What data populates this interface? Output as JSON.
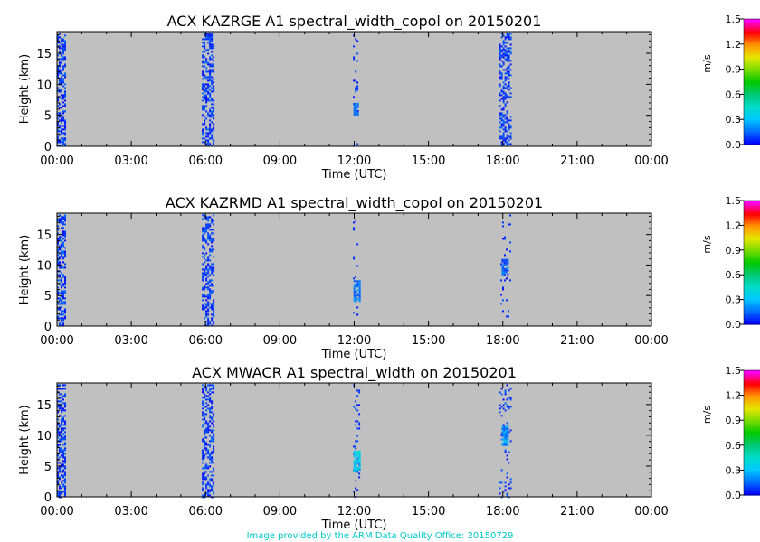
{
  "chart_data": [
    {
      "type": "heatmap",
      "title": "ACX KAZRGE A1 spectral_width_copol on 20150201",
      "xlabel": "Time (UTC)",
      "ylabel": "Height (km)",
      "xlim": [
        0,
        24
      ],
      "ylim": [
        0,
        18.5
      ],
      "x_tick_labels": [
        "00:00",
        "03:00",
        "06:00",
        "09:00",
        "12:00",
        "15:00",
        "18:00",
        "21:00",
        "00:00"
      ],
      "y_ticks": [
        0,
        5,
        10,
        15
      ],
      "colorbar": {
        "label": "m/s",
        "range": [
          0,
          1.5
        ],
        "ticks": [
          "0.0",
          "0.3",
          "0.6",
          "0.9",
          "1.2",
          "1.5"
        ]
      },
      "echo_bands": [
        {
          "t_start": 0.0,
          "t_end": 0.35,
          "h_bottom": 0.0,
          "h_top": 18.3,
          "density": 0.55,
          "sw_min": 0.0,
          "sw_max": 0.15
        },
        {
          "t_start": 5.85,
          "t_end": 6.3,
          "h_bottom": 0.0,
          "h_top": 18.3,
          "density": 0.5,
          "sw_min": 0.0,
          "sw_max": 0.15
        },
        {
          "t_start": 11.95,
          "t_end": 12.15,
          "h_bottom": 0.0,
          "h_top": 18.3,
          "density": 0.08,
          "sw_min": 0.0,
          "sw_max": 0.12
        },
        {
          "t_start": 11.97,
          "t_end": 12.17,
          "h_bottom": 5.0,
          "h_top": 7.0,
          "density": 0.85,
          "sw_min": 0.05,
          "sw_max": 0.2
        },
        {
          "t_start": 17.85,
          "t_end": 18.35,
          "h_bottom": 0.0,
          "h_top": 18.3,
          "density": 0.45,
          "sw_min": 0.0,
          "sw_max": 0.15
        }
      ]
    },
    {
      "type": "heatmap",
      "title": "ACX KAZRMD A1 spectral_width_copol on 20150201",
      "xlabel": "Time (UTC)",
      "ylabel": "Height (km)",
      "xlim": [
        0,
        24
      ],
      "ylim": [
        0,
        18.5
      ],
      "x_tick_labels": [
        "00:00",
        "03:00",
        "06:00",
        "09:00",
        "12:00",
        "15:00",
        "18:00",
        "21:00",
        "00:00"
      ],
      "y_ticks": [
        0,
        5,
        10,
        15
      ],
      "colorbar": {
        "label": "m/s",
        "range": [
          0,
          1.5
        ],
        "ticks": [
          "0.0",
          "0.3",
          "0.6",
          "0.9",
          "1.2",
          "1.5"
        ]
      },
      "echo_bands": [
        {
          "t_start": 0.0,
          "t_end": 0.35,
          "h_bottom": 0.0,
          "h_top": 18.3,
          "density": 0.55,
          "sw_min": 0.0,
          "sw_max": 0.15
        },
        {
          "t_start": 5.85,
          "t_end": 6.3,
          "h_bottom": 0.0,
          "h_top": 18.3,
          "density": 0.5,
          "sw_min": 0.0,
          "sw_max": 0.15
        },
        {
          "t_start": 11.95,
          "t_end": 12.15,
          "h_bottom": 0.0,
          "h_top": 18.3,
          "density": 0.08,
          "sw_min": 0.0,
          "sw_max": 0.12
        },
        {
          "t_start": 11.97,
          "t_end": 12.2,
          "h_bottom": 4.0,
          "h_top": 7.5,
          "density": 0.85,
          "sw_min": 0.08,
          "sw_max": 0.22
        },
        {
          "t_start": 17.9,
          "t_end": 18.3,
          "h_bottom": 0.0,
          "h_top": 18.3,
          "density": 0.08,
          "sw_min": 0.0,
          "sw_max": 0.12
        },
        {
          "t_start": 17.95,
          "t_end": 18.2,
          "h_bottom": 8.5,
          "h_top": 11.0,
          "density": 0.85,
          "sw_min": 0.05,
          "sw_max": 0.2
        }
      ]
    },
    {
      "type": "heatmap",
      "title": "ACX MWACR A1 spectral_width on 20150201",
      "xlabel": "Time (UTC)",
      "ylabel": "Height (km)",
      "xlim": [
        0,
        24
      ],
      "ylim": [
        0,
        18.5
      ],
      "x_tick_labels": [
        "00:00",
        "03:00",
        "06:00",
        "09:00",
        "12:00",
        "15:00",
        "18:00",
        "21:00",
        "00:00"
      ],
      "y_ticks": [
        0,
        5,
        10,
        15
      ],
      "colorbar": {
        "label": "m/s",
        "range": [
          0,
          1.5
        ],
        "ticks": [
          "0.0",
          "0.3",
          "0.6",
          "0.9",
          "1.2",
          "1.5"
        ]
      },
      "echo_bands": [
        {
          "t_start": 0.0,
          "t_end": 0.35,
          "h_bottom": 0.0,
          "h_top": 18.3,
          "density": 0.55,
          "sw_min": 0.0,
          "sw_max": 0.15
        },
        {
          "t_start": 5.85,
          "t_end": 6.3,
          "h_bottom": 0.0,
          "h_top": 18.3,
          "density": 0.5,
          "sw_min": 0.0,
          "sw_max": 0.15
        },
        {
          "t_start": 11.95,
          "t_end": 12.2,
          "h_bottom": 0.0,
          "h_top": 18.3,
          "density": 0.15,
          "sw_min": 0.0,
          "sw_max": 0.15
        },
        {
          "t_start": 11.97,
          "t_end": 12.2,
          "h_bottom": 4.0,
          "h_top": 7.5,
          "density": 0.9,
          "sw_min": 0.2,
          "sw_max": 0.45
        },
        {
          "t_start": 17.85,
          "t_end": 18.3,
          "h_bottom": 0.0,
          "h_top": 18.3,
          "density": 0.15,
          "sw_min": 0.0,
          "sw_max": 0.15
        },
        {
          "t_start": 17.95,
          "t_end": 18.2,
          "h_bottom": 8.5,
          "h_top": 11.5,
          "density": 0.85,
          "sw_min": 0.1,
          "sw_max": 0.3
        }
      ]
    }
  ],
  "colors": {
    "plot_background": "#c0c0c0",
    "footer_text": "#00c8c8"
  },
  "footer": "Image provided by the ARM Data Quality Office: 20150729"
}
